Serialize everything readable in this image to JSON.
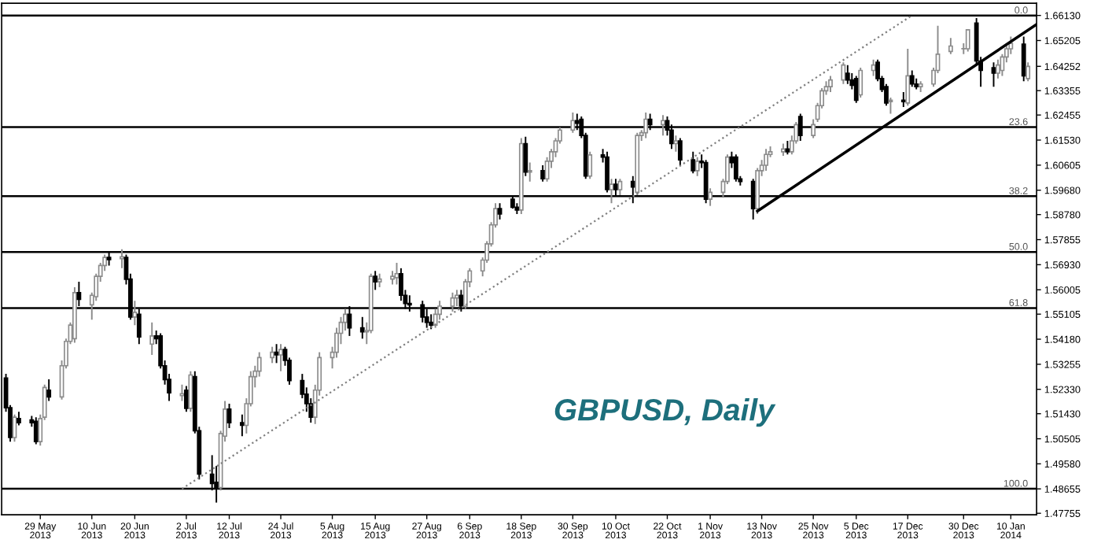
{
  "chart_data": {
    "type": "candlestick",
    "title": "GBPUSD, Daily",
    "x": [
      "2013-05-21",
      "2013-05-22",
      "2013-05-23",
      "2013-05-24",
      "2013-05-27",
      "2013-05-28",
      "2013-05-29",
      "2013-05-30",
      "2013-05-31",
      "2013-06-03",
      "2013-06-04",
      "2013-06-05",
      "2013-06-06",
      "2013-06-07",
      "2013-06-10",
      "2013-06-11",
      "2013-06-12",
      "2013-06-13",
      "2013-06-14",
      "2013-06-17",
      "2013-06-18",
      "2013-06-19",
      "2013-06-20",
      "2013-06-21",
      "2013-06-24",
      "2013-06-25",
      "2013-06-26",
      "2013-06-27",
      "2013-06-28",
      "2013-07-01",
      "2013-07-02",
      "2013-07-03",
      "2013-07-04",
      "2013-07-05",
      "2013-07-08",
      "2013-07-09",
      "2013-07-10",
      "2013-07-11",
      "2013-07-12",
      "2013-07-15",
      "2013-07-16",
      "2013-07-17",
      "2013-07-18",
      "2013-07-19",
      "2013-07-22",
      "2013-07-23",
      "2013-07-24",
      "2013-07-25",
      "2013-07-26",
      "2013-07-29",
      "2013-07-30",
      "2013-07-31",
      "2013-08-01",
      "2013-08-02",
      "2013-08-05",
      "2013-08-06",
      "2013-08-07",
      "2013-08-08",
      "2013-08-09",
      "2013-08-12",
      "2013-08-13",
      "2013-08-14",
      "2013-08-15",
      "2013-08-16",
      "2013-08-19",
      "2013-08-20",
      "2013-08-21",
      "2013-08-22",
      "2013-08-23",
      "2013-08-26",
      "2013-08-27",
      "2013-08-28",
      "2013-08-29",
      "2013-08-30",
      "2013-09-02",
      "2013-09-03",
      "2013-09-04",
      "2013-09-05",
      "2013-09-06",
      "2013-09-09",
      "2013-09-10",
      "2013-09-11",
      "2013-09-12",
      "2013-09-13",
      "2013-09-16",
      "2013-09-17",
      "2013-09-18",
      "2013-09-19",
      "2013-09-20",
      "2013-09-23",
      "2013-09-24",
      "2013-09-25",
      "2013-09-26",
      "2013-09-27",
      "2013-09-30",
      "2013-10-01",
      "2013-10-02",
      "2013-10-03",
      "2013-10-04",
      "2013-10-07",
      "2013-10-08",
      "2013-10-09",
      "2013-10-10",
      "2013-10-11",
      "2013-10-14",
      "2013-10-15",
      "2013-10-16",
      "2013-10-17",
      "2013-10-18",
      "2013-10-21",
      "2013-10-22",
      "2013-10-23",
      "2013-10-24",
      "2013-10-25",
      "2013-10-28",
      "2013-10-29",
      "2013-10-30",
      "2013-10-31",
      "2013-11-01",
      "2013-11-04",
      "2013-11-05",
      "2013-11-06",
      "2013-11-07",
      "2013-11-08",
      "2013-11-11",
      "2013-11-12",
      "2013-11-13",
      "2013-11-14",
      "2013-11-15",
      "2013-11-18",
      "2013-11-19",
      "2013-11-20",
      "2013-11-21",
      "2013-11-22",
      "2013-11-25",
      "2013-11-26",
      "2013-11-27",
      "2013-11-28",
      "2013-11-29",
      "2013-12-02",
      "2013-12-03",
      "2013-12-04",
      "2013-12-05",
      "2013-12-06",
      "2013-12-09",
      "2013-12-10",
      "2013-12-11",
      "2013-12-12",
      "2013-12-13",
      "2013-12-16",
      "2013-12-17",
      "2013-12-18",
      "2013-12-19",
      "2013-12-20",
      "2013-12-23",
      "2013-12-24",
      "2013-12-27",
      "2013-12-30",
      "2013-12-31",
      "2014-01-02",
      "2014-01-03",
      "2014-01-06",
      "2014-01-07",
      "2014-01-08",
      "2014-01-09",
      "2014-01-10",
      "2014-01-13",
      "2014-01-14"
    ],
    "ohlc": [
      [
        1.5275,
        1.529,
        1.515,
        1.5165
      ],
      [
        1.5165,
        1.5175,
        1.504,
        1.5055
      ],
      [
        1.5055,
        1.514,
        1.504,
        1.513
      ],
      [
        1.5125,
        1.515,
        1.51,
        1.511
      ],
      [
        1.512,
        1.5135,
        1.5095,
        1.511
      ],
      [
        1.5115,
        1.513,
        1.503,
        1.504
      ],
      [
        1.504,
        1.514,
        1.5025,
        1.5125
      ],
      [
        1.513,
        1.525,
        1.512,
        1.524
      ],
      [
        1.523,
        1.527,
        1.519,
        1.5205
      ],
      [
        1.5205,
        1.534,
        1.5195,
        1.532
      ],
      [
        1.532,
        1.542,
        1.531,
        1.541
      ],
      [
        1.541,
        1.548,
        1.54,
        1.547
      ],
      [
        1.542,
        1.561,
        1.5405,
        1.559
      ],
      [
        1.559,
        1.563,
        1.554,
        1.5565
      ],
      [
        1.5545,
        1.559,
        1.549,
        1.558
      ],
      [
        1.5575,
        1.566,
        1.556,
        1.565
      ],
      [
        1.565,
        1.57,
        1.563,
        1.569
      ],
      [
        1.569,
        1.573,
        1.567,
        1.572
      ],
      [
        1.572,
        1.574,
        1.569,
        1.5712
      ],
      [
        1.5715,
        1.575,
        1.568,
        1.5722
      ],
      [
        1.572,
        1.573,
        1.562,
        1.5639
      ],
      [
        1.564,
        1.566,
        1.549,
        1.55
      ],
      [
        1.55,
        1.556,
        1.547,
        1.5517
      ],
      [
        1.551,
        1.553,
        1.54,
        1.5426
      ],
      [
        1.54,
        1.548,
        1.536,
        1.543
      ],
      [
        1.543,
        1.545,
        1.54,
        1.542
      ],
      [
        1.543,
        1.544,
        1.531,
        1.532
      ],
      [
        1.532,
        1.534,
        1.525,
        1.5269
      ],
      [
        1.527,
        1.529,
        1.519,
        1.522
      ],
      [
        1.521,
        1.525,
        1.519,
        1.5217
      ],
      [
        1.523,
        1.5245,
        1.515,
        1.5163
      ],
      [
        1.5163,
        1.53,
        1.515,
        1.5286
      ],
      [
        1.528,
        1.53,
        1.507,
        1.508
      ],
      [
        1.508,
        1.5095,
        1.49,
        1.492
      ],
      [
        1.492,
        1.499,
        1.486,
        1.4885
      ],
      [
        1.489,
        1.495,
        1.4815,
        1.487
      ],
      [
        1.487,
        1.508,
        1.486,
        1.507
      ],
      [
        1.506,
        1.519,
        1.504,
        1.516
      ],
      [
        1.516,
        1.518,
        1.509,
        1.511
      ],
      [
        1.511,
        1.514,
        1.506,
        1.51
      ],
      [
        1.51,
        1.52,
        1.507,
        1.518
      ],
      [
        1.518,
        1.53,
        1.517,
        1.528
      ],
      [
        1.528,
        1.532,
        1.524,
        1.53
      ],
      [
        1.53,
        1.537,
        1.528,
        1.535
      ],
      [
        1.535,
        1.539,
        1.533,
        1.537
      ],
      [
        1.537,
        1.54,
        1.533,
        1.536
      ],
      [
        1.536,
        1.54,
        1.53,
        1.538
      ],
      [
        1.538,
        1.539,
        1.532,
        1.534
      ],
      [
        1.534,
        1.535,
        1.525,
        1.5265
      ],
      [
        1.5265,
        1.529,
        1.52,
        1.5215
      ],
      [
        1.5215,
        1.524,
        1.515,
        1.518
      ],
      [
        1.518,
        1.52,
        1.511,
        1.513
      ],
      [
        1.513,
        1.525,
        1.5105,
        1.523
      ],
      [
        1.523,
        1.537,
        1.521,
        1.535
      ],
      [
        1.535,
        1.539,
        1.531,
        1.537
      ],
      [
        1.537,
        1.546,
        1.535,
        1.544
      ],
      [
        1.544,
        1.55,
        1.54,
        1.548
      ],
      [
        1.548,
        1.553,
        1.545,
        1.551
      ],
      [
        1.551,
        1.554,
        1.543,
        1.546
      ],
      [
        1.546,
        1.55,
        1.542,
        1.5445
      ],
      [
        1.5445,
        1.548,
        1.54,
        1.545
      ],
      [
        1.545,
        1.566,
        1.544,
        1.565
      ],
      [
        1.565,
        1.567,
        1.56,
        1.563
      ],
      [
        1.563,
        1.566,
        1.561,
        1.564
      ],
      [
        1.564,
        1.567,
        1.562,
        1.565
      ],
      [
        1.5645,
        1.57,
        1.562,
        1.566
      ],
      [
        1.566,
        1.568,
        1.556,
        1.558
      ],
      [
        1.558,
        1.56,
        1.553,
        1.555
      ],
      [
        1.555,
        1.558,
        1.552,
        1.5545
      ],
      [
        1.5545,
        1.556,
        1.548,
        1.55
      ],
      [
        1.55,
        1.553,
        1.546,
        1.548
      ],
      [
        1.548,
        1.551,
        1.5455,
        1.547
      ],
      [
        1.547,
        1.553,
        1.546,
        1.551
      ],
      [
        1.551,
        1.556,
        1.549,
        1.554
      ],
      [
        1.554,
        1.559,
        1.552,
        1.557
      ],
      [
        1.557,
        1.56,
        1.554,
        1.558
      ],
      [
        1.558,
        1.56,
        1.552,
        1.554
      ],
      [
        1.554,
        1.564,
        1.553,
        1.563
      ],
      [
        1.563,
        1.568,
        1.561,
        1.567
      ],
      [
        1.567,
        1.572,
        1.565,
        1.571
      ],
      [
        1.571,
        1.578,
        1.57,
        1.577
      ],
      [
        1.577,
        1.585,
        1.576,
        1.584
      ],
      [
        1.584,
        1.592,
        1.583,
        1.59
      ],
      [
        1.59,
        1.592,
        1.586,
        1.588
      ],
      [
        1.5935,
        1.595,
        1.59,
        1.5905
      ],
      [
        1.5905,
        1.592,
        1.588,
        1.5895
      ],
      [
        1.5895,
        1.616,
        1.588,
        1.614
      ],
      [
        1.614,
        1.6165,
        1.602,
        1.6035
      ],
      [
        1.6035,
        1.607,
        1.6,
        1.604
      ],
      [
        1.604,
        1.606,
        1.6,
        1.601
      ],
      [
        1.601,
        1.609,
        1.6,
        1.6075
      ],
      [
        1.6075,
        1.612,
        1.605,
        1.611
      ],
      [
        1.611,
        1.616,
        1.609,
        1.615
      ],
      [
        1.615,
        1.62,
        1.614,
        1.619
      ],
      [
        1.619,
        1.6255,
        1.618,
        1.6225
      ],
      [
        1.6225,
        1.625,
        1.619,
        1.6215
      ],
      [
        1.623,
        1.624,
        1.616,
        1.617
      ],
      [
        1.617,
        1.618,
        1.601,
        1.602
      ],
      [
        1.602,
        1.611,
        1.601,
        1.6098
      ],
      [
        1.6098,
        1.612,
        1.607,
        1.609
      ],
      [
        1.609,
        1.611,
        1.596,
        1.597
      ],
      [
        1.597,
        1.601,
        1.592,
        1.599
      ],
      [
        1.599,
        1.601,
        1.595,
        1.597
      ],
      [
        1.597,
        1.601,
        1.595,
        1.6
      ],
      [
        1.6,
        1.602,
        1.592,
        1.598
      ],
      [
        1.596,
        1.618,
        1.595,
        1.617
      ],
      [
        1.617,
        1.619,
        1.615,
        1.618
      ],
      [
        1.618,
        1.6255,
        1.616,
        1.623
      ],
      [
        1.623,
        1.625,
        1.619,
        1.621
      ],
      [
        1.621,
        1.6245,
        1.617,
        1.6225
      ],
      [
        1.6225,
        1.624,
        1.617,
        1.619
      ],
      [
        1.619,
        1.621,
        1.612,
        1.614
      ],
      [
        1.614,
        1.617,
        1.611,
        1.615
      ],
      [
        1.615,
        1.616,
        1.606,
        1.608
      ],
      [
        1.608,
        1.611,
        1.603,
        1.604
      ],
      [
        1.604,
        1.609,
        1.602,
        1.6075
      ],
      [
        1.6075,
        1.61,
        1.605,
        1.607
      ],
      [
        1.607,
        1.608,
        1.592,
        1.5935
      ],
      [
        1.5935,
        1.5975,
        1.591,
        1.596
      ],
      [
        1.596,
        1.601,
        1.594,
        1.6
      ],
      [
        1.6,
        1.61,
        1.599,
        1.609
      ],
      [
        1.609,
        1.611,
        1.605,
        1.607
      ],
      [
        1.609,
        1.61,
        1.6,
        1.601
      ],
      [
        1.601,
        1.602,
        1.5985,
        1.6
      ],
      [
        1.6,
        1.601,
        1.586,
        1.59
      ],
      [
        1.59,
        1.605,
        1.588,
        1.604
      ],
      [
        1.604,
        1.608,
        1.602,
        1.606
      ],
      [
        1.606,
        1.612,
        1.604,
        1.61
      ],
      [
        1.61,
        1.613,
        1.609,
        1.611
      ],
      [
        1.611,
        1.614,
        1.6095,
        1.612
      ],
      [
        1.612,
        1.615,
        1.61,
        1.611
      ],
      [
        1.611,
        1.617,
        1.61,
        1.615
      ],
      [
        1.615,
        1.622,
        1.614,
        1.621
      ],
      [
        1.624,
        1.625,
        1.615,
        1.617
      ],
      [
        1.617,
        1.623,
        1.616,
        1.621
      ],
      [
        1.623,
        1.629,
        1.622,
        1.628
      ],
      [
        1.628,
        1.6345,
        1.627,
        1.6335
      ],
      [
        1.6335,
        1.637,
        1.632,
        1.635
      ],
      [
        1.635,
        1.639,
        1.633,
        1.6375
      ],
      [
        1.6375,
        1.644,
        1.636,
        1.643
      ],
      [
        1.64,
        1.643,
        1.636,
        1.6375
      ],
      [
        1.6375,
        1.64,
        1.634,
        1.6355
      ],
      [
        1.638,
        1.639,
        1.629,
        1.63
      ],
      [
        1.632,
        1.642,
        1.631,
        1.641
      ],
      [
        1.641,
        1.645,
        1.639,
        1.643
      ],
      [
        1.644,
        1.645,
        1.637,
        1.638
      ],
      [
        1.638,
        1.639,
        1.633,
        1.634
      ],
      [
        1.635,
        1.636,
        1.628,
        1.629
      ],
      [
        1.6295,
        1.631,
        1.625,
        1.63
      ],
      [
        1.63,
        1.633,
        1.6275,
        1.6295
      ],
      [
        1.629,
        1.649,
        1.628,
        1.639
      ],
      [
        1.639,
        1.641,
        1.635,
        1.636
      ],
      [
        1.636,
        1.638,
        1.634,
        1.635
      ],
      [
        1.635,
        1.637,
        1.633,
        1.636
      ],
      [
        1.636,
        1.642,
        1.635,
        1.641
      ],
      [
        1.641,
        1.6575,
        1.64,
        1.647
      ],
      [
        1.648,
        1.653,
        1.647,
        1.65
      ],
      [
        1.649,
        1.651,
        1.647,
        1.649
      ],
      [
        1.649,
        1.656,
        1.648,
        1.656
      ],
      [
        1.6585,
        1.6603,
        1.643,
        1.6445
      ],
      [
        1.6445,
        1.646,
        1.635,
        1.641
      ],
      [
        1.642,
        1.644,
        1.635,
        1.64
      ],
      [
        1.64,
        1.645,
        1.638,
        1.643
      ],
      [
        1.641,
        1.647,
        1.639,
        1.646
      ],
      [
        1.646,
        1.65,
        1.644,
        1.649
      ],
      [
        1.649,
        1.6535,
        1.647,
        1.651
      ],
      [
        1.6507,
        1.6535,
        1.637,
        1.639
      ],
      [
        1.638,
        1.644,
        1.637,
        1.6425
      ]
    ],
    "series": [
      {
        "type": "line",
        "color": "#808080",
        "line_style": "dotted",
        "x": [
          "2013-07-01",
          "2013-12-18"
        ],
        "values": [
          1.4866,
          1.6613
        ]
      },
      {
        "type": "line",
        "color": "#000000",
        "line_style": "solid",
        "x": [
          "2013-11-12",
          "2014-01-16"
        ],
        "values": [
          1.5891,
          1.658
        ]
      }
    ],
    "ref_lines": [
      {
        "axis": "y",
        "value": 1.6613,
        "color": "#000000"
      },
      {
        "axis": "y",
        "value": 1.6201,
        "color": "#000000"
      },
      {
        "axis": "y",
        "value": 1.5946,
        "color": "#000000"
      },
      {
        "axis": "y",
        "value": 1.574,
        "color": "#000000"
      },
      {
        "axis": "y",
        "value": 1.5533,
        "color": "#000000"
      },
      {
        "axis": "y",
        "value": 1.4866,
        "color": "#000000"
      }
    ],
    "annotations": [
      {
        "text": "0.0",
        "x": "2014-01-14",
        "y": 1.6613
      },
      {
        "text": "23.6",
        "x": "2014-01-14",
        "y": 1.6201
      },
      {
        "text": "38.2",
        "x": "2014-01-14",
        "y": 1.5946
      },
      {
        "text": "50.0",
        "x": "2014-01-14",
        "y": 1.574
      },
      {
        "text": "61.8",
        "x": "2014-01-14",
        "y": 1.5533
      },
      {
        "text": "100.0",
        "x": "2014-01-14",
        "y": 1.4866
      }
    ],
    "xlim": [
      "2013-05-20",
      "2014-01-16"
    ],
    "xticks": [
      {
        "value": "2013-05-29",
        "label": "29 May 2013"
      },
      {
        "value": "2013-06-10",
        "label": "10 Jun 2013"
      },
      {
        "value": "2013-06-20",
        "label": "20 Jun 2013"
      },
      {
        "value": "2013-07-02",
        "label": "2 Jul 2013"
      },
      {
        "value": "2013-07-12",
        "label": "12 Jul 2013"
      },
      {
        "value": "2013-07-24",
        "label": "24 Jul 2013"
      },
      {
        "value": "2013-08-05",
        "label": "5 Aug 2013"
      },
      {
        "value": "2013-08-15",
        "label": "15 Aug 2013"
      },
      {
        "value": "2013-08-27",
        "label": "27 Aug 2013"
      },
      {
        "value": "2013-09-06",
        "label": "6 Sep 2013"
      },
      {
        "value": "2013-09-18",
        "label": "18 Sep 2013"
      },
      {
        "value": "2013-09-30",
        "label": "30 Sep 2013"
      },
      {
        "value": "2013-10-10",
        "label": "10 Oct 2013"
      },
      {
        "value": "2013-10-22",
        "label": "22 Oct 2013"
      },
      {
        "value": "2013-11-01",
        "label": "1 Nov 2013"
      },
      {
        "value": "2013-11-13",
        "label": "13 Nov 2013"
      },
      {
        "value": "2013-11-25",
        "label": "25 Nov 2013"
      },
      {
        "value": "2013-12-05",
        "label": "5 Dec 2013"
      },
      {
        "value": "2013-12-17",
        "label": "17 Dec 2013"
      },
      {
        "value": "2013-12-30",
        "label": "30 Dec 2013"
      },
      {
        "value": "2014-01-10",
        "label": "10 Jan 2014"
      }
    ],
    "ylim": [
      1.477,
      1.6658
    ],
    "yticks": [
      {
        "value": 1.6613,
        "label": "1.66130"
      },
      {
        "value": 1.65205,
        "label": "1.65205"
      },
      {
        "value": 1.64252,
        "label": "1.64252"
      },
      {
        "value": 1.63355,
        "label": "1.63355"
      },
      {
        "value": 1.62455,
        "label": "1.62455"
      },
      {
        "value": 1.6153,
        "label": "1.61530"
      },
      {
        "value": 1.60605,
        "label": "1.60605"
      },
      {
        "value": 1.5968,
        "label": "1.59680"
      },
      {
        "value": 1.5878,
        "label": "1.58780"
      },
      {
        "value": 1.57855,
        "label": "1.57855"
      },
      {
        "value": 1.5693,
        "label": "1.56930"
      },
      {
        "value": 1.56005,
        "label": "1.56005"
      },
      {
        "value": 1.55105,
        "label": "1.55105"
      },
      {
        "value": 1.5418,
        "label": "1.54180"
      },
      {
        "value": 1.53255,
        "label": "1.53255"
      },
      {
        "value": 1.5233,
        "label": "1.52330"
      },
      {
        "value": 1.5143,
        "label": "1.51430"
      },
      {
        "value": 1.50505,
        "label": "1.50505"
      },
      {
        "value": 1.4958,
        "label": "1.49580"
      },
      {
        "value": 1.48655,
        "label": "1.48655"
      },
      {
        "value": 1.47755,
        "label": "1.47755"
      }
    ]
  }
}
